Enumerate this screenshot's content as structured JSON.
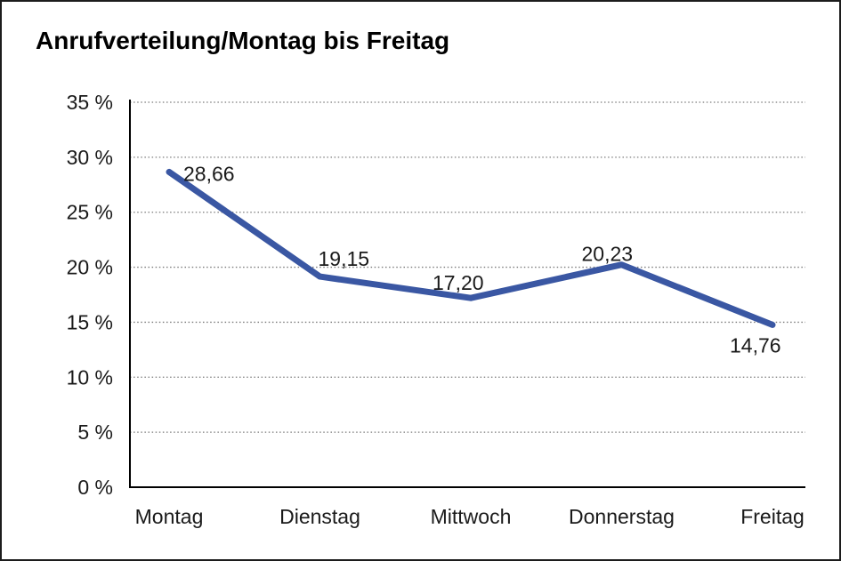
{
  "chart": {
    "title": "Anrufverteilung/Montag bis Freitag"
  },
  "chart_data": {
    "type": "line",
    "title": "Anrufverteilung/Montag bis Freitag",
    "categories": [
      "Montag",
      "Dienstag",
      "Mittwoch",
      "Donnerstag",
      "Freitag"
    ],
    "values": [
      28.66,
      19.15,
      17.2,
      20.23,
      14.76
    ],
    "value_labels": [
      "28,66",
      "19,15",
      "17,20",
      "20,23",
      "14,76"
    ],
    "xlabel": "",
    "ylabel": "",
    "ylim": [
      0,
      35
    ],
    "y_tick_step": 5,
    "y_tick_labels": [
      "0 %",
      "5 %",
      "10 %",
      "15 %",
      "20 %",
      "25 %",
      "30 %",
      "35 %"
    ],
    "grid": "horizontal-dotted",
    "legend": "none",
    "colors": {
      "line": "#3A57A3",
      "axis": "#000000",
      "gridline": "#7a7a7a",
      "text": "#1a1a1a"
    }
  }
}
